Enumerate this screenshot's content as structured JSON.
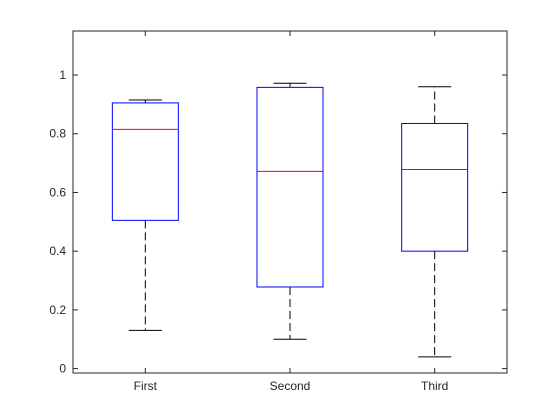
{
  "chart_data": {
    "type": "boxplot",
    "categories": [
      "First",
      "Second",
      "Third"
    ],
    "boxes": [
      {
        "category": "First",
        "whisker_low": 0.13,
        "q1": 0.505,
        "median": 0.815,
        "q3": 0.905,
        "whisker_high": 0.915
      },
      {
        "category": "Second",
        "whisker_low": 0.1,
        "q1": 0.278,
        "median": 0.672,
        "q3": 0.958,
        "whisker_high": 0.972
      },
      {
        "category": "Third",
        "whisker_low": 0.04,
        "q1": 0.4,
        "median": 0.678,
        "q3": 0.835,
        "whisker_high": 0.96
      }
    ],
    "title": "",
    "xlabel": "",
    "ylabel": "",
    "ylim": [
      -0.015,
      1.15
    ],
    "yticks": [
      0,
      0.2,
      0.4,
      0.6,
      0.8,
      1
    ],
    "ytick_labels": [
      "0",
      "0.2",
      "0.4",
      "0.6",
      "0.8",
      "1"
    ],
    "grid": false,
    "colors": {
      "box": "#0000ff",
      "median": "#ff0000",
      "whisker": "#000000",
      "axis": "#262626"
    }
  }
}
